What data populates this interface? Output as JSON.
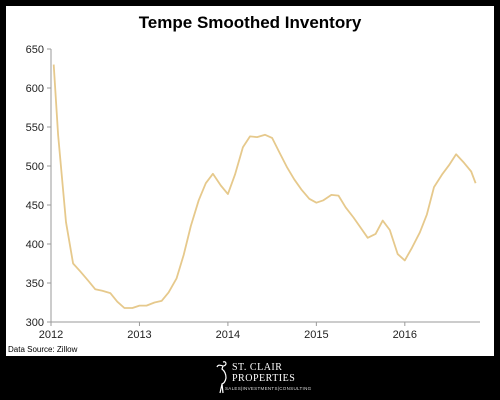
{
  "chart_data": {
    "type": "line",
    "title": "Tempe Smoothed Inventory",
    "xlabel": "",
    "ylabel": "",
    "ylim": [
      300,
      650
    ],
    "xlim": [
      2012,
      2016.85
    ],
    "yticks": [
      300,
      350,
      400,
      450,
      500,
      550,
      600,
      650
    ],
    "xticks": [
      "2012",
      "2013",
      "2014",
      "2015",
      "2016"
    ],
    "grid": false,
    "line_color": "#E6C98C",
    "series": [
      {
        "x": [
          2012.03,
          2012.08,
          2012.17,
          2012.25,
          2012.33,
          2012.42,
          2012.5,
          2012.58,
          2012.67,
          2012.75,
          2012.83,
          2012.92,
          2013.0,
          2013.08,
          2013.17,
          2013.25,
          2013.33,
          2013.42,
          2013.5,
          2013.58,
          2013.67,
          2013.75,
          2013.83,
          2013.92,
          2014.0,
          2014.08,
          2014.17,
          2014.25,
          2014.33,
          2014.42,
          2014.5,
          2014.58,
          2014.67,
          2014.75,
          2014.83,
          2014.92,
          2015.0,
          2015.08,
          2015.17,
          2015.25,
          2015.33,
          2015.42,
          2015.5,
          2015.58,
          2015.67,
          2015.75,
          2015.83,
          2015.92,
          2016.0,
          2016.08,
          2016.17,
          2016.25,
          2016.33,
          2016.42,
          2016.5,
          2016.58,
          2016.67,
          2016.75,
          2016.8
        ],
        "y": [
          630,
          540,
          428,
          375,
          365,
          353,
          342,
          340,
          337,
          326,
          318,
          318,
          321,
          321,
          325,
          327,
          338,
          356,
          386,
          423,
          456,
          478,
          490,
          475,
          464,
          489,
          524,
          538,
          537,
          540,
          536,
          518,
          498,
          483,
          470,
          458,
          453,
          456,
          463,
          462,
          447,
          434,
          421,
          408,
          413,
          430,
          418,
          387,
          379,
          395,
          415,
          438,
          473,
          489,
          501,
          515,
          504,
          493,
          478
        ]
      }
    ]
  },
  "source_text": "Data Source: Zillow",
  "logo": {
    "line1": "ST. CLAIR",
    "line2": "PROPERTIES",
    "line3": "SALES|INVESTMENTS|CONSULTING"
  }
}
